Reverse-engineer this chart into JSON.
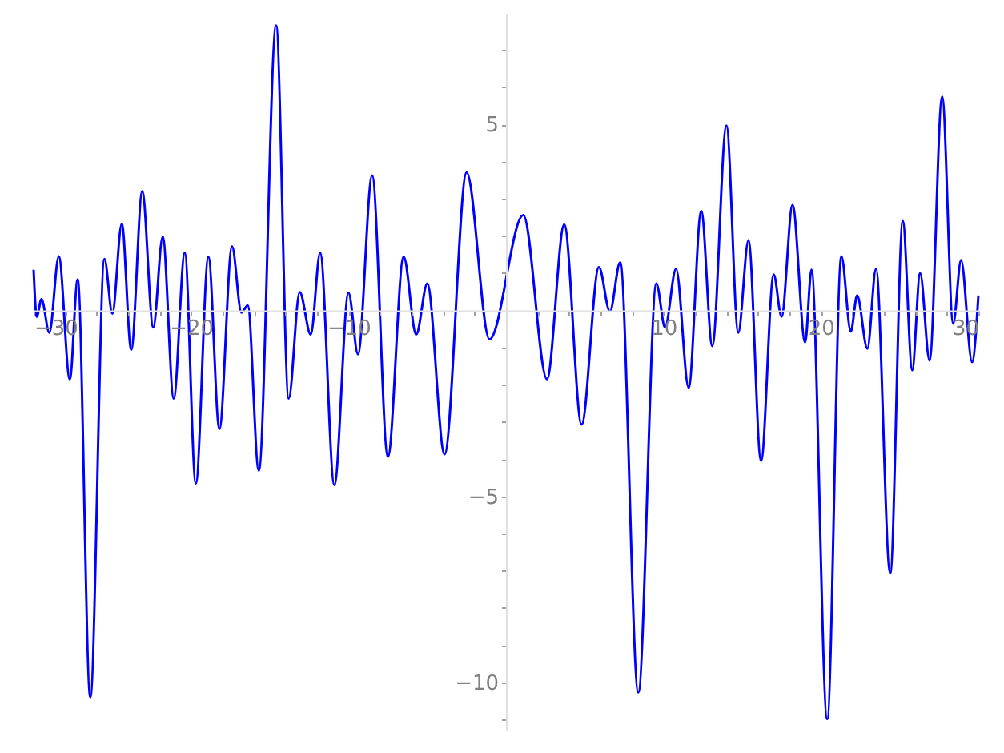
{
  "chart_data": {
    "type": "line",
    "x": [
      -30.0,
      -29.8,
      -29.5,
      -29.0,
      -28.4,
      -27.7,
      -27.2,
      -26.4,
      -25.5,
      -25.0,
      -24.4,
      -23.8,
      -23.1,
      -22.4,
      -21.8,
      -21.1,
      -20.4,
      -19.7,
      -18.9,
      -18.2,
      -17.4,
      -16.8,
      -16.4,
      -15.7,
      -14.6,
      -13.8,
      -13.1,
      -12.4,
      -11.8,
      -10.9,
      -10.0,
      -9.4,
      -8.5,
      -7.5,
      -6.5,
      -5.7,
      -5.0,
      -3.9,
      -2.5,
      -1.05,
      1.1,
      2.6,
      3.7,
      4.8,
      5.9,
      6.6,
      7.25,
      8.4,
      9.55,
      10.1,
      10.8,
      11.6,
      12.4,
      13.1,
      14.0,
      14.75,
      15.4,
      16.2,
      17.0,
      17.5,
      18.2,
      19.0,
      19.4,
      20.4,
      21.3,
      21.9,
      22.3,
      22.95,
      23.5,
      24.4,
      25.2,
      25.8,
      26.3,
      26.9,
      27.7,
      28.4,
      28.9,
      29.6,
      30.0
    ],
    "series": [
      {
        "color": "#0000ff",
        "values": [
          1.09,
          -0.17,
          0.3,
          -0.6,
          1.45,
          -1.85,
          0.83,
          -10.4,
          1.38,
          -0.09,
          2.33,
          -1.06,
          3.2,
          -0.46,
          1.98,
          -2.37,
          1.55,
          -4.66,
          1.44,
          -3.19,
          1.72,
          -0.06,
          0.13,
          -4.31,
          7.66,
          -2.37,
          0.49,
          -0.65,
          1.55,
          -4.7,
          0.47,
          -1.18,
          3.63,
          -3.94,
          1.44,
          -0.65,
          0.72,
          -3.87,
          3.71,
          -0.78,
          2.56,
          -1.85,
          2.31,
          -3.07,
          1.16,
          -0.03,
          1.29,
          -10.27,
          0.72,
          -0.46,
          1.12,
          -2.08,
          2.67,
          -0.96,
          4.97,
          -0.6,
          1.88,
          -4.05,
          0.96,
          -0.17,
          2.83,
          -0.86,
          1.09,
          -10.99,
          1.45,
          -0.57,
          0.4,
          -1.03,
          1.12,
          -7.07,
          2.4,
          -1.61,
          1.0,
          -1.35,
          5.75,
          -0.36,
          1.35,
          -1.39,
          0.4
        ]
      }
    ],
    "xlim": [
      -30,
      30
    ],
    "ylim": [
      -11.3,
      8.0
    ],
    "xticks": [
      {
        "value": -30,
        "label": "−30"
      },
      {
        "value": -28,
        "label": null
      },
      {
        "value": -26,
        "label": null
      },
      {
        "value": -24,
        "label": null
      },
      {
        "value": -22,
        "label": null
      },
      {
        "value": -20,
        "label": "−20"
      },
      {
        "value": -18,
        "label": null
      },
      {
        "value": -16,
        "label": null
      },
      {
        "value": -14,
        "label": null
      },
      {
        "value": -12,
        "label": null
      },
      {
        "value": -10,
        "label": "−10"
      },
      {
        "value": -8,
        "label": null
      },
      {
        "value": -6,
        "label": null
      },
      {
        "value": -4,
        "label": null
      },
      {
        "value": -2,
        "label": null
      },
      {
        "value": 2,
        "label": null
      },
      {
        "value": 4,
        "label": null
      },
      {
        "value": 6,
        "label": null
      },
      {
        "value": 8,
        "label": null
      },
      10,
      {
        "value": 12,
        "label": null
      },
      {
        "value": 14,
        "label": null
      },
      {
        "value": 16,
        "label": null
      },
      {
        "value": 18,
        "label": null
      },
      20,
      {
        "value": 22,
        "label": null
      },
      {
        "value": 24,
        "label": null
      },
      {
        "value": 26,
        "label": null
      },
      {
        "value": 28,
        "label": null
      },
      30
    ],
    "yticks": [
      {
        "value": -11,
        "label": null
      },
      {
        "value": -10,
        "label": "−10"
      },
      {
        "value": -9,
        "label": null
      },
      {
        "value": -8,
        "label": null
      },
      {
        "value": -7,
        "label": null
      },
      {
        "value": -6,
        "label": null
      },
      {
        "value": -5,
        "label": "−5"
      },
      {
        "value": -4,
        "label": null
      },
      {
        "value": -3,
        "label": null
      },
      {
        "value": -2,
        "label": null
      },
      {
        "value": -1,
        "label": null
      },
      {
        "value": 1,
        "label": null
      },
      {
        "value": 2,
        "label": null
      },
      {
        "value": 3,
        "label": null
      },
      {
        "value": 4,
        "label": null
      },
      5,
      {
        "value": 6,
        "label": null
      },
      {
        "value": 7,
        "label": null
      }
    ],
    "grid": false,
    "line_style": "solid",
    "marker": "none",
    "legend": false
  }
}
